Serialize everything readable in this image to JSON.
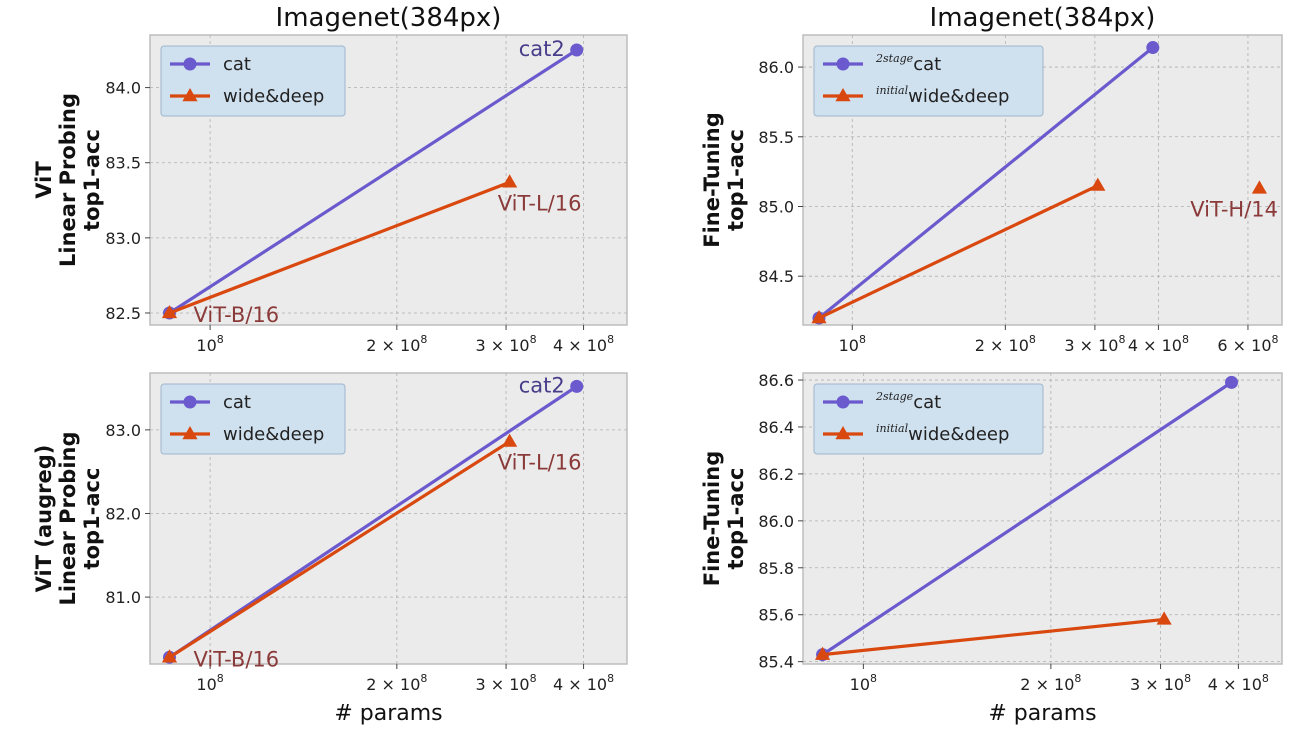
{
  "figure": {
    "xlabel": "# params"
  },
  "chart_data": [
    {
      "type": "line",
      "title": "Imagenet(384px)",
      "ylabel_lines": [
        "ViT",
        "Linear Probing",
        "top1-acc"
      ],
      "xlabel": "",
      "xscale": "log",
      "xlim": [
        80000000,
        470000000
      ],
      "ylim": [
        82.42,
        84.35
      ],
      "yticks": [
        {
          "v": 82.5,
          "label": "82.5"
        },
        {
          "v": 83.0,
          "label": "83.0"
        },
        {
          "v": 83.5,
          "label": "83.5"
        },
        {
          "v": 84.0,
          "label": "84.0"
        }
      ],
      "xticks": [
        {
          "v": 100000000,
          "label": "10^8"
        },
        {
          "v": 200000000,
          "label": "2 × 10^8"
        },
        {
          "v": 300000000,
          "label": "3 × 10^8"
        },
        {
          "v": 400000000,
          "label": "4 × 10^8"
        }
      ],
      "series": [
        {
          "name": "cat",
          "legend_label": "cat",
          "color": "#6a5acd",
          "marker": "circle",
          "x": [
            86000000,
            390000000
          ],
          "y": [
            82.5,
            84.25
          ]
        },
        {
          "name": "wide&deep",
          "legend_label": "wide&deep",
          "color": "#d9480f",
          "marker": "triangle",
          "x": [
            86000000,
            304000000
          ],
          "y": [
            82.5,
            83.37
          ]
        }
      ],
      "annotations": [
        {
          "text": "cat2",
          "x": 390000000,
          "y": 84.25,
          "color": "#483d8b"
        },
        {
          "text": "ViT-L/16",
          "x": 304000000,
          "y": 83.37,
          "color": "#8b3a3a"
        },
        {
          "text": "ViT-B/16",
          "x": 86000000,
          "y": 82.5,
          "color": "#8b3a3a"
        }
      ],
      "legend": "upper-left"
    },
    {
      "type": "line",
      "title": "Imagenet(384px)",
      "ylabel_lines": [
        "Fine-Tuning",
        "top1-acc"
      ],
      "xlabel": "",
      "xscale": "log",
      "xlim": [
        80000000,
        700000000
      ],
      "ylim": [
        84.15,
        86.23
      ],
      "yticks": [
        {
          "v": 84.5,
          "label": "84.5"
        },
        {
          "v": 85.0,
          "label": "85.0"
        },
        {
          "v": 85.5,
          "label": "85.5"
        },
        {
          "v": 86.0,
          "label": "86.0"
        }
      ],
      "xticks": [
        {
          "v": 100000000,
          "label": "10^8"
        },
        {
          "v": 200000000,
          "label": "2 × 10^8"
        },
        {
          "v": 300000000,
          "label": "3 × 10^8"
        },
        {
          "v": 400000000,
          "label": "4 × 10^8"
        },
        {
          "v": 600000000,
          "label": "6 × 10^8"
        }
      ],
      "series": [
        {
          "name": "cat",
          "legend_label": "cat",
          "legend_sup": "2stage",
          "color": "#6a5acd",
          "marker": "circle",
          "x": [
            86000000,
            390000000
          ],
          "y": [
            84.2,
            86.14
          ]
        },
        {
          "name": "wide&deep",
          "legend_label": "wide&deep",
          "legend_sup": "initial",
          "color": "#d9480f",
          "marker": "triangle",
          "x": [
            86000000,
            304000000
          ],
          "y": [
            84.2,
            85.15
          ]
        },
        {
          "name": "ViT-H/14",
          "legend_label": "",
          "color": "#d9480f",
          "marker": "triangle",
          "x": [
            632000000
          ],
          "y": [
            85.13
          ],
          "no_line": true
        }
      ],
      "annotations": [
        {
          "text": "ViT-H/14",
          "x": 632000000,
          "y": 85.13,
          "color": "#8b3a3a"
        }
      ],
      "legend": "upper-left"
    },
    {
      "type": "line",
      "title": "",
      "ylabel_lines": [
        "ViT (augreg)",
        "Linear Probing",
        "top1-acc"
      ],
      "xlabel": "# params",
      "xscale": "log",
      "xlim": [
        80000000,
        470000000
      ],
      "ylim": [
        80.2,
        83.68
      ],
      "yticks": [
        {
          "v": 81.0,
          "label": "81.0"
        },
        {
          "v": 82.0,
          "label": "82.0"
        },
        {
          "v": 83.0,
          "label": "83.0"
        }
      ],
      "xticks": [
        {
          "v": 100000000,
          "label": "10^8"
        },
        {
          "v": 200000000,
          "label": "2 × 10^8"
        },
        {
          "v": 300000000,
          "label": "3 × 10^8"
        },
        {
          "v": 400000000,
          "label": "4 × 10^8"
        }
      ],
      "series": [
        {
          "name": "cat",
          "legend_label": "cat",
          "color": "#6a5acd",
          "marker": "circle",
          "x": [
            86000000,
            390000000
          ],
          "y": [
            80.28,
            83.52
          ]
        },
        {
          "name": "wide&deep",
          "legend_label": "wide&deep",
          "color": "#d9480f",
          "marker": "triangle",
          "x": [
            86000000,
            304000000
          ],
          "y": [
            80.28,
            82.86
          ]
        }
      ],
      "annotations": [
        {
          "text": "cat2",
          "x": 390000000,
          "y": 83.52,
          "color": "#483d8b"
        },
        {
          "text": "ViT-L/16",
          "x": 304000000,
          "y": 82.86,
          "color": "#8b3a3a"
        },
        {
          "text": "ViT-B/16",
          "x": 86000000,
          "y": 80.28,
          "color": "#8b3a3a"
        }
      ],
      "legend": "upper-left"
    },
    {
      "type": "line",
      "title": "",
      "ylabel_lines": [
        "Fine-Tuning",
        "top1-acc"
      ],
      "xlabel": "# params",
      "xscale": "log",
      "xlim": [
        80000000,
        470000000
      ],
      "ylim": [
        85.39,
        86.63
      ],
      "yticks": [
        {
          "v": 85.4,
          "label": "85.4"
        },
        {
          "v": 85.6,
          "label": "85.6"
        },
        {
          "v": 85.8,
          "label": "85.8"
        },
        {
          "v": 86.0,
          "label": "86.0"
        },
        {
          "v": 86.2,
          "label": "86.2"
        },
        {
          "v": 86.4,
          "label": "86.4"
        },
        {
          "v": 86.6,
          "label": "86.6"
        }
      ],
      "xticks": [
        {
          "v": 100000000,
          "label": "10^8"
        },
        {
          "v": 200000000,
          "label": "2 × 10^8"
        },
        {
          "v": 300000000,
          "label": "3 × 10^8"
        },
        {
          "v": 400000000,
          "label": "4 × 10^8"
        }
      ],
      "series": [
        {
          "name": "cat",
          "legend_label": "cat",
          "legend_sup": "2stage",
          "color": "#6a5acd",
          "marker": "circle",
          "x": [
            86000000,
            390000000
          ],
          "y": [
            85.43,
            86.59
          ]
        },
        {
          "name": "wide&deep",
          "legend_label": "wide&deep",
          "legend_sup": "initial",
          "color": "#d9480f",
          "marker": "triangle",
          "x": [
            86000000,
            304000000
          ],
          "y": [
            85.43,
            85.58
          ]
        }
      ],
      "annotations": [],
      "legend": "upper-left"
    }
  ],
  "colors": {
    "plot_bg": "#ebebeb",
    "grid": "#b0b0b0",
    "frame": "#bdbdbd",
    "legend_bg": "#cfe0ef",
    "legend_border": "#9fb6cc"
  }
}
